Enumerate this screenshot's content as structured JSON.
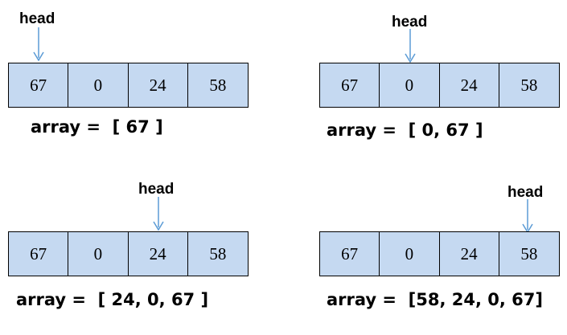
{
  "colors": {
    "cell_fill": "#c5d9f1",
    "cell_border": "#000000",
    "arrow": "#5b9bd5",
    "text": "#000000"
  },
  "panels": [
    {
      "head_label": "head",
      "head_index": 0,
      "cells": [
        "67",
        "0",
        "24",
        "58"
      ],
      "array_text": "array =  [ 67 ]"
    },
    {
      "head_label": "head",
      "head_index": 1,
      "cells": [
        "67",
        "0",
        "24",
        "58"
      ],
      "array_text": "array =  [ 0, 67 ]"
    },
    {
      "head_label": "head",
      "head_index": 2,
      "cells": [
        "67",
        "0",
        "24",
        "58"
      ],
      "array_text": "array =  [ 24, 0, 67 ]"
    },
    {
      "head_label": "head",
      "head_index": 3,
      "cells": [
        "67",
        "0",
        "24",
        "58"
      ],
      "array_text": "array =  [58, 24, 0, 67]"
    }
  ]
}
